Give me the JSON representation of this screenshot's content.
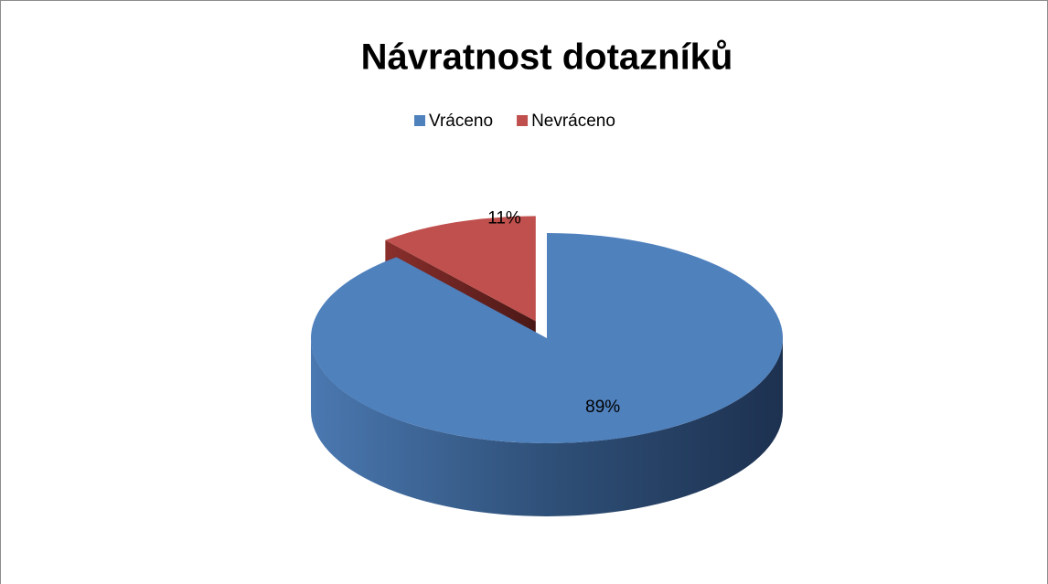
{
  "chart_data": {
    "type": "pie",
    "title": "Návratnost dotazníků",
    "categories": [
      "Vráceno",
      "Nevráceno"
    ],
    "values": [
      89,
      11
    ],
    "value_labels": [
      "89%",
      "11%"
    ],
    "colors": [
      "#4f81bd",
      "#c0504d"
    ],
    "legend": "top",
    "three_d": true
  }
}
